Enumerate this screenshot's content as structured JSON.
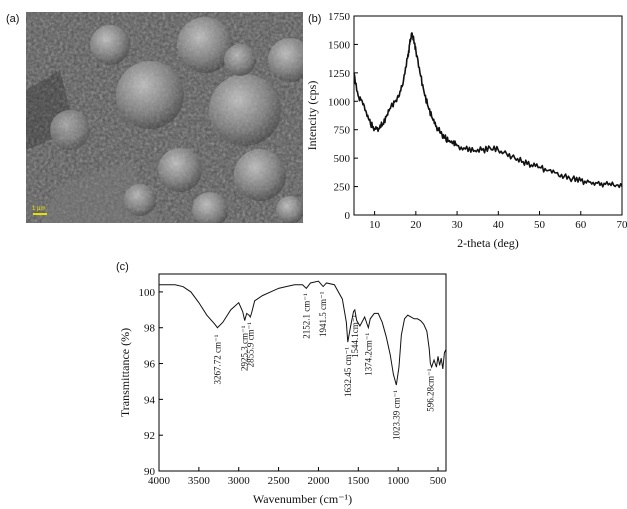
{
  "panels": {
    "a": {
      "label": "(a)",
      "scalebar_label": "1 μm"
    },
    "b": {
      "label": "(b)"
    },
    "c": {
      "label": "(c)"
    }
  },
  "chart_data": [
    {
      "type": "line",
      "panel": "b",
      "title": "",
      "xlabel": "2-theta (deg)",
      "ylabel": "Intencity (cps)",
      "xlim": [
        5,
        70
      ],
      "ylim": [
        0,
        1750
      ],
      "xticks": [
        10,
        20,
        30,
        40,
        50,
        60,
        70
      ],
      "yticks": [
        0,
        250,
        500,
        750,
        1000,
        1250,
        1500,
        1750
      ],
      "grid": false,
      "series": [
        {
          "x": [
            5,
            6,
            7,
            8,
            9,
            10,
            11,
            12,
            13,
            14,
            15,
            16,
            17,
            18,
            18.5,
            19,
            19.5,
            20,
            21,
            22,
            23,
            24,
            25,
            26,
            27,
            28,
            29,
            30,
            32,
            34,
            36,
            38,
            40,
            42,
            44,
            46,
            48,
            50,
            52,
            54,
            56,
            58,
            60,
            62,
            64,
            66,
            68,
            70
          ],
          "y": [
            1250,
            1050,
            1000,
            900,
            800,
            760,
            760,
            800,
            880,
            960,
            1000,
            1050,
            1180,
            1380,
            1500,
            1600,
            1540,
            1450,
            1250,
            1080,
            950,
            850,
            780,
            720,
            680,
            650,
            630,
            610,
            580,
            560,
            570,
            590,
            570,
            540,
            500,
            470,
            440,
            420,
            390,
            370,
            340,
            320,
            300,
            290,
            280,
            270,
            260,
            250
          ]
        }
      ]
    },
    {
      "type": "line",
      "panel": "c",
      "title": "",
      "xlabel": "Wavenumber (cm⁻¹)",
      "ylabel": "Transmittance (%)",
      "xlim": [
        4000,
        400
      ],
      "ylim": [
        90,
        101
      ],
      "xticks": [
        4000,
        3500,
        3000,
        2500,
        2000,
        1500,
        1000,
        500
      ],
      "yticks": [
        90,
        92,
        94,
        96,
        98,
        100
      ],
      "grid": false,
      "series": [
        {
          "x": [
            4000,
            3800,
            3700,
            3600,
            3500,
            3400,
            3300,
            3267,
            3200,
            3100,
            3000,
            2950,
            2925,
            2900,
            2870,
            2855,
            2840,
            2800,
            2700,
            2600,
            2500,
            2400,
            2300,
            2200,
            2152,
            2100,
            2000,
            1941,
            1900,
            1800,
            1700,
            1650,
            1632,
            1600,
            1560,
            1544,
            1520,
            1480,
            1420,
            1390,
            1374,
            1350,
            1300,
            1250,
            1200,
            1150,
            1100,
            1060,
            1023,
            990,
            960,
            920,
            880,
            840,
            800,
            760,
            720,
            680,
            640,
            610,
            596,
            580,
            550,
            520,
            500,
            480,
            460,
            440,
            420,
            400
          ],
          "y": [
            100.4,
            100.4,
            100.3,
            100.0,
            99.4,
            98.7,
            98.2,
            98.0,
            98.3,
            99.0,
            99.4,
            98.9,
            98.4,
            98.8,
            98.7,
            98.6,
            98.8,
            99.5,
            99.8,
            100.0,
            100.2,
            100.3,
            100.4,
            100.4,
            100.2,
            100.5,
            100.6,
            100.3,
            100.5,
            100.4,
            99.6,
            98.3,
            97.2,
            98.0,
            98.9,
            99.0,
            98.4,
            98.1,
            98.6,
            98.2,
            98.0,
            98.5,
            98.8,
            98.8,
            98.3,
            97.5,
            96.5,
            95.4,
            94.8,
            95.8,
            97.6,
            98.5,
            98.7,
            98.6,
            98.5,
            98.5,
            98.4,
            98.2,
            97.8,
            96.8,
            96.0,
            95.8,
            96.2,
            95.8,
            96.4,
            95.9,
            96.3,
            95.7,
            96.6,
            96.8
          ]
        }
      ],
      "annotations": [
        {
          "text": "3267.72 cm⁻¹",
          "x": 3267,
          "y": 97.9
        },
        {
          "text": "2925.3 cm⁻¹",
          "x": 2925,
          "y": 98.4
        },
        {
          "text": "2855.9 cm⁻¹",
          "x": 2855,
          "y": 98.6
        },
        {
          "text": "2152.1 cm⁻¹",
          "x": 2152,
          "y": 100.2
        },
        {
          "text": "1941.5 cm⁻¹",
          "x": 1941,
          "y": 100.3
        },
        {
          "text": "1632.45 cm⁻¹",
          "x": 1632,
          "y": 97.2
        },
        {
          "text": "1544.1cm⁻¹",
          "x": 1544,
          "y": 99.0
        },
        {
          "text": "1374.2cm⁻¹",
          "x": 1374,
          "y": 98.0
        },
        {
          "text": "1023.39 cm⁻¹",
          "x": 1023,
          "y": 94.8
        },
        {
          "text": "596.28cm⁻¹",
          "x": 596,
          "y": 96.0
        }
      ]
    }
  ]
}
